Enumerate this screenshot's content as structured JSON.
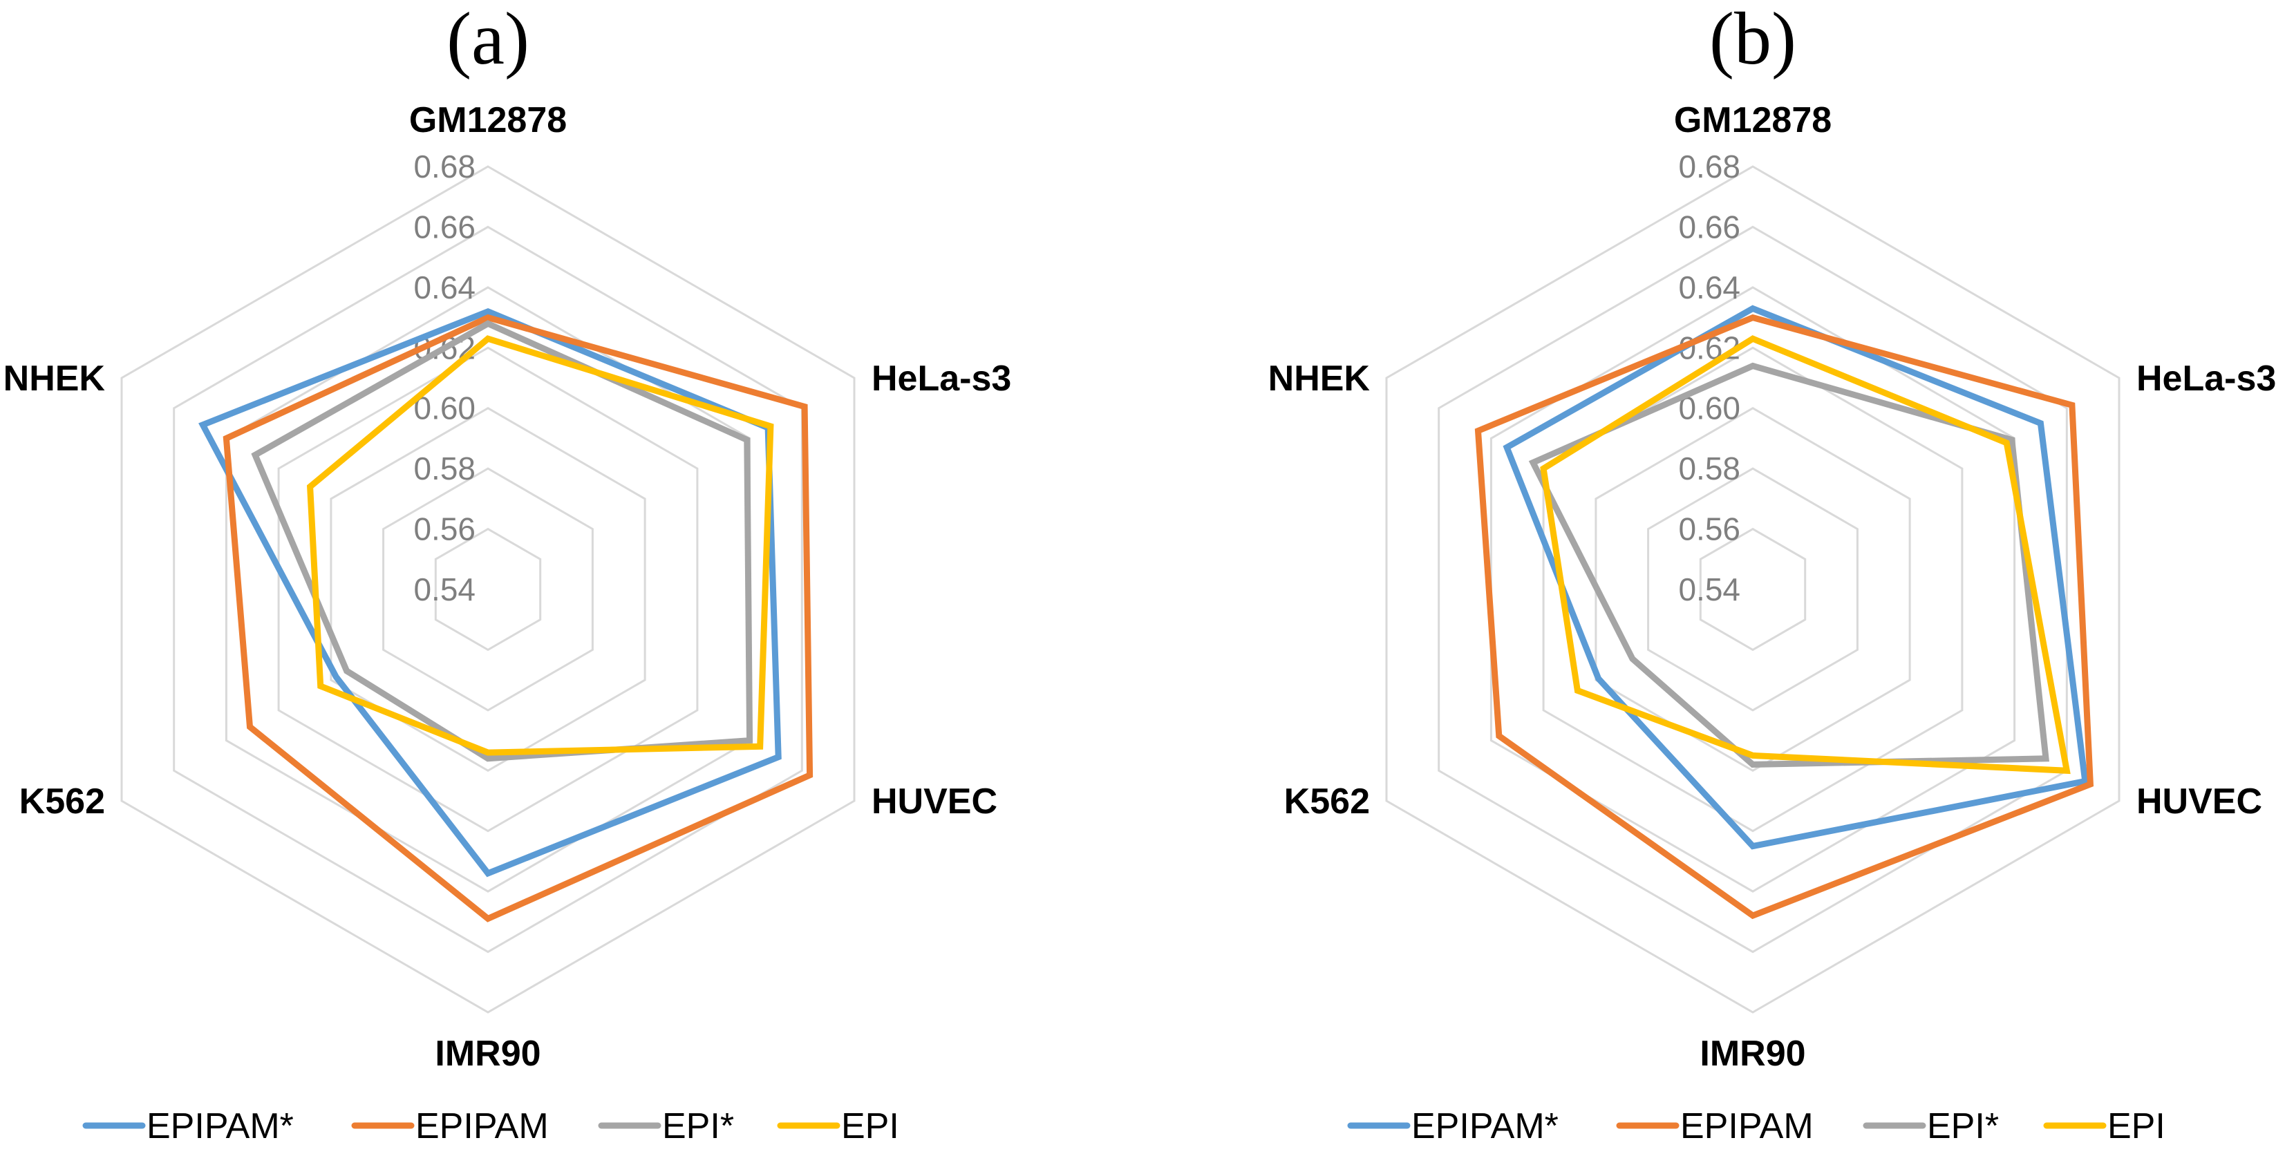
{
  "figure": {
    "panels": [
      "(a)",
      "(b)"
    ]
  },
  "colors": {
    "EPIPAM*": "#5B9BD5",
    "EPIPAM": "#ED7D31",
    "EPI*": "#A5A5A5",
    "EPI": "#FFC000",
    "grid": "#D9D9D9",
    "tick_text": "#7F7F7F"
  },
  "chart_data": [
    {
      "type": "radar",
      "title": "(a)",
      "categories": [
        "GM12878",
        "HeLa-s3",
        "HUVEC",
        "IMR90",
        "K562",
        "NHEK"
      ],
      "rlim": [
        0.54,
        0.68
      ],
      "r_ticks": [
        "0.54",
        "0.56",
        "0.58",
        "0.60",
        "0.62",
        "0.64",
        "0.66",
        "0.68"
      ],
      "grid": true,
      "legend_position": "bottom",
      "series": [
        {
          "name": "EPIPAM*",
          "values": [
            0.632,
            0.647,
            0.651,
            0.634,
            0.598,
            0.649
          ]
        },
        {
          "name": "EPIPAM",
          "values": [
            0.63,
            0.661,
            0.663,
            0.649,
            0.631,
            0.64
          ]
        },
        {
          "name": "EPI*",
          "values": [
            0.628,
            0.639,
            0.64,
            0.596,
            0.594,
            0.629
          ]
        },
        {
          "name": "EPI",
          "values": [
            0.623,
            0.648,
            0.644,
            0.594,
            0.604,
            0.608
          ]
        }
      ]
    },
    {
      "type": "radar",
      "title": "(b)",
      "categories": [
        "GM12878",
        "HeLa-s3",
        "HUVEC",
        "IMR90",
        "K562",
        "NHEK"
      ],
      "rlim": [
        0.54,
        0.68
      ],
      "r_ticks": [
        "0.54",
        "0.56",
        "0.58",
        "0.60",
        "0.62",
        "0.64",
        "0.66",
        "0.68"
      ],
      "grid": true,
      "legend_position": "bottom",
      "series": [
        {
          "name": "EPIPAM*",
          "values": [
            0.633,
            0.65,
            0.667,
            0.625,
            0.599,
            0.634
          ]
        },
        {
          "name": "EPIPAM",
          "values": [
            0.63,
            0.662,
            0.669,
            0.648,
            0.637,
            0.645
          ]
        },
        {
          "name": "EPI*",
          "values": [
            0.614,
            0.639,
            0.652,
            0.598,
            0.586,
            0.624
          ]
        },
        {
          "name": "EPI",
          "values": [
            0.623,
            0.637,
            0.66,
            0.595,
            0.607,
            0.62
          ]
        }
      ]
    }
  ]
}
